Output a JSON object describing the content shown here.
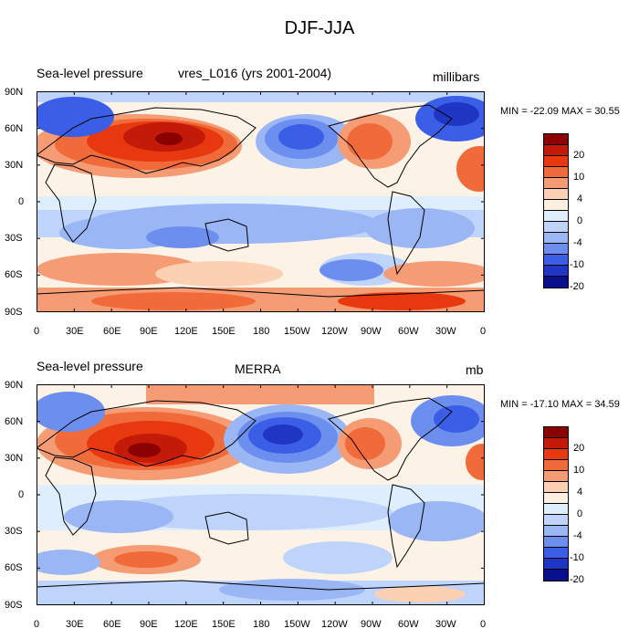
{
  "figure": {
    "title": "DJF-JJA"
  },
  "panels": [
    {
      "left_label": "Sea-level pressure",
      "center_label": "vres_L016 (yrs 2001-2004)",
      "units": "millibars",
      "stats": "MIN = -22.09 MAX =  30.55"
    },
    {
      "left_label": "Sea-level pressure",
      "center_label": "MERRA",
      "units": "mb",
      "stats": "MIN = -17.10 MAX =  34.59"
    }
  ],
  "axes": {
    "lat_labels": [
      "90N",
      "60N",
      "30N",
      "0",
      "30S",
      "60S",
      "90S"
    ],
    "lon_labels": [
      "0",
      "30E",
      "60E",
      "90E",
      "120E",
      "150E",
      "180",
      "150W",
      "120W",
      "90W",
      "60W",
      "30W",
      "0"
    ]
  },
  "colorbar": {
    "labels": [
      "20",
      "10",
      "4",
      "0",
      "-4",
      "-10",
      "-20"
    ],
    "colors": [
      "#8b0000",
      "#c41a0a",
      "#e8380f",
      "#f06a3a",
      "#f59c74",
      "#fbd0b3",
      "#fdf0e0",
      "#deeefc",
      "#bfd4fb",
      "#9bb6f5",
      "#6c8fef",
      "#3a5fe6",
      "#1f36c4",
      "#0a0f8c"
    ]
  },
  "palette": {
    "neutral": "#fdf2e6",
    "red_light": "#fbd0b3",
    "red_mid": "#f59c74",
    "red": "#f06a3a",
    "red_dark": "#e8380f",
    "red_deep": "#c41a0a",
    "red_max": "#8b0000",
    "blue_light": "#deeefc",
    "blue_mid": "#bfd4fb",
    "blue": "#9bb6f5",
    "blue_dark": "#6c8fef",
    "blue_deep": "#3a5fe6",
    "blue_max": "#1f36c4"
  }
}
